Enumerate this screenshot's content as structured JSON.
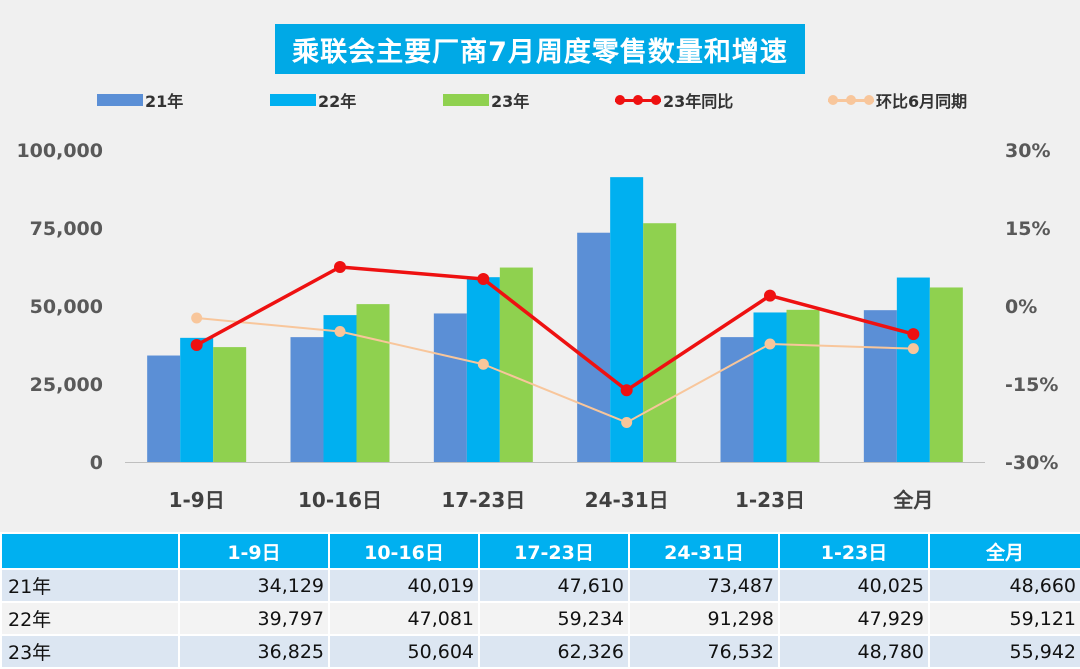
{
  "colors": {
    "bar21": "#5b8fd6",
    "bar22": "#00b0f0",
    "bar23": "#8fd14f",
    "yoy": "#ee1111",
    "mom": "#f8c69b",
    "title_bg": "#00a9e6",
    "table_header": "#00b0f0"
  },
  "chart_data": {
    "type": "bar",
    "title": "乘联会主要厂商7月周度零售数量和增速",
    "categories": [
      "1-9日",
      "10-16日",
      "17-23日",
      "24-31日",
      "1-23日",
      "全月"
    ],
    "series": [
      {
        "name": "21年",
        "type": "bar",
        "axis": "left",
        "values": [
          34129,
          40019,
          47610,
          73487,
          40025,
          48660
        ]
      },
      {
        "name": "22年",
        "type": "bar",
        "axis": "left",
        "values": [
          39797,
          47081,
          59234,
          91298,
          47929,
          59121
        ]
      },
      {
        "name": "23年",
        "type": "bar",
        "axis": "left",
        "values": [
          36825,
          50604,
          62326,
          76532,
          48780,
          55942
        ]
      },
      {
        "name": "23年同比",
        "type": "line",
        "axis": "right",
        "values": [
          -7.5,
          7.5,
          5.2,
          -16.2,
          2.0,
          -5.4
        ]
      },
      {
        "name": "环比6月同期",
        "type": "line",
        "axis": "right",
        "values": [
          -2.3,
          -4.9,
          -11.2,
          -22.4,
          -7.3,
          -8.2
        ]
      }
    ],
    "y_left": {
      "min": 0,
      "max": 100000,
      "ticks": [
        "0",
        "25,000",
        "50,000",
        "75,000",
        "100,000"
      ],
      "tick_values": [
        0,
        25000,
        50000,
        75000,
        100000
      ]
    },
    "y_right": {
      "min": -30,
      "max": 30,
      "ticks": [
        "-30%",
        "-15%",
        "0%",
        "15%",
        "30%"
      ],
      "tick_values": [
        -30,
        -15,
        0,
        15,
        30
      ]
    },
    "legend_position": "top",
    "grid": false
  },
  "table": {
    "headers": [
      "",
      "1-9日",
      "10-16日",
      "17-23日",
      "24-31日",
      "1-23日",
      "全月"
    ],
    "rows": [
      {
        "label": "21年",
        "cells": [
          "34,129",
          "40,019",
          "47,610",
          "73,487",
          "40,025",
          "48,660"
        ]
      },
      {
        "label": "22年",
        "cells": [
          "39,797",
          "47,081",
          "59,234",
          "91,298",
          "47,929",
          "59,121"
        ]
      },
      {
        "label": "23年",
        "cells": [
          "36,825",
          "50,604",
          "62,326",
          "76,532",
          "48,780",
          "55,942"
        ]
      }
    ]
  }
}
